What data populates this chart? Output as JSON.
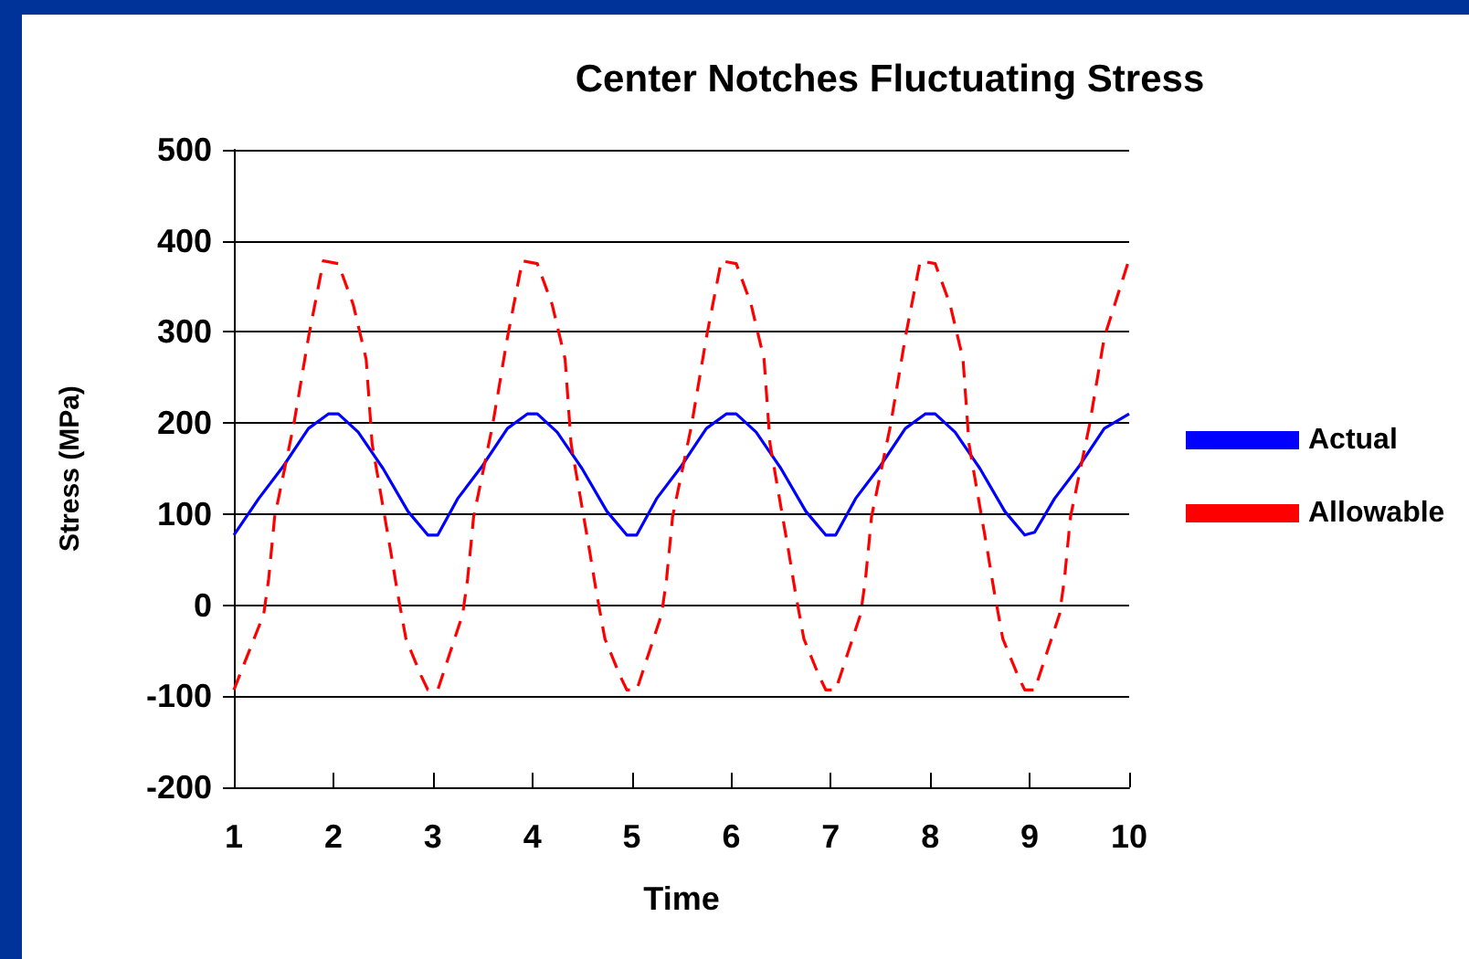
{
  "chart_data": {
    "type": "line",
    "title": "Center Notches Fluctuating Stress",
    "xlabel": "Time",
    "ylabel": "Stress (MPa)",
    "xlim": [
      1,
      10
    ],
    "xticks": [
      1,
      2,
      3,
      4,
      5,
      6,
      7,
      8,
      9,
      10
    ],
    "ylim": [
      -200,
      500
    ],
    "yticks": [
      -200,
      -100,
      0,
      100,
      200,
      300,
      400,
      500
    ],
    "grid": "y",
    "legend": "right",
    "marker": "none",
    "series": [
      {
        "name": "Actual",
        "color": "#0000ff",
        "line_style": "solid",
        "x": [
          1,
          1.25,
          1.5,
          1.75,
          1.95,
          2.05,
          2.25,
          2.5,
          2.75,
          2.95,
          3.05,
          3.25,
          3.5,
          3.75,
          3.95,
          4.05,
          4.25,
          4.5,
          4.75,
          4.95,
          5.05,
          5.25,
          5.5,
          5.75,
          5.95,
          6.05,
          6.25,
          6.5,
          6.75,
          6.95,
          7.05,
          7.25,
          7.5,
          7.75,
          7.95,
          8.05,
          8.25,
          8.5,
          8.75,
          8.95,
          9.05,
          9.25,
          9.5,
          9.75,
          10
        ],
        "values": [
          77,
          117,
          153,
          194,
          210,
          210,
          190,
          150,
          103,
          77,
          77,
          117,
          153,
          194,
          210,
          210,
          190,
          150,
          103,
          77,
          77,
          117,
          153,
          194,
          210,
          210,
          190,
          150,
          103,
          77,
          77,
          117,
          153,
          194,
          210,
          210,
          190,
          150,
          103,
          77,
          80,
          117,
          153,
          194,
          210
        ]
      },
      {
        "name": "Allowable",
        "color": "#ff0000",
        "line_style": "dashed",
        "x": [
          1,
          1.3,
          1.35,
          1.41,
          1.6,
          1.75,
          1.9,
          2.05,
          2.2,
          2.33,
          2.39,
          2.58,
          2.64,
          2.73,
          2.88,
          2.95,
          3.05,
          3.3,
          3.35,
          3.41,
          3.6,
          3.75,
          3.9,
          4.05,
          4.2,
          4.33,
          4.39,
          4.58,
          4.64,
          4.73,
          4.88,
          4.95,
          5.05,
          5.3,
          5.35,
          5.41,
          5.6,
          5.75,
          5.9,
          6.05,
          6.2,
          6.33,
          6.39,
          6.58,
          6.64,
          6.73,
          6.88,
          6.95,
          7.05,
          7.3,
          7.35,
          7.41,
          7.6,
          7.75,
          7.9,
          8.05,
          8.2,
          8.33,
          8.39,
          8.58,
          8.64,
          8.73,
          8.88,
          8.95,
          9.05,
          9.3,
          9.35,
          9.41,
          9.6,
          9.75,
          10
        ],
        "values": [
          -93,
          -10,
          29,
          97,
          197,
          294,
          378,
          375,
          330,
          270,
          177,
          57,
          17,
          -37,
          -77,
          -93,
          -93,
          -10,
          29,
          97,
          197,
          294,
          378,
          375,
          330,
          270,
          177,
          57,
          17,
          -37,
          -77,
          -93,
          -93,
          -10,
          29,
          97,
          197,
          294,
          378,
          375,
          330,
          270,
          177,
          57,
          17,
          -37,
          -77,
          -93,
          -93,
          -10,
          29,
          97,
          197,
          294,
          378,
          375,
          330,
          270,
          177,
          57,
          17,
          -37,
          -77,
          -93,
          -93,
          -10,
          29,
          97,
          197,
          294,
          380
        ]
      }
    ]
  }
}
